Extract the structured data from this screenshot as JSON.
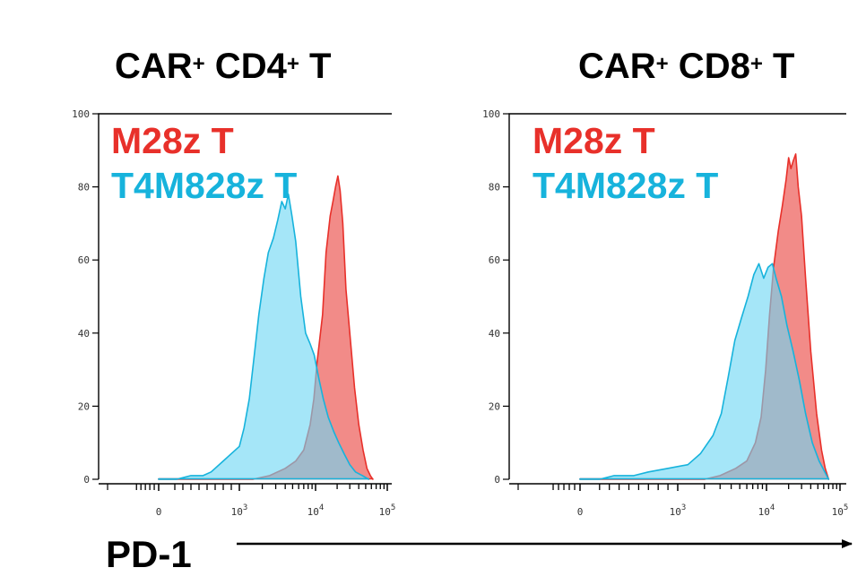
{
  "x_axis_label": "PD-1",
  "chart_data": [
    {
      "type": "area",
      "title": {
        "main": "CAR",
        "sup1": "+",
        "mid": " CD4",
        "sup2": "+",
        "end": " T"
      },
      "ylim": [
        0,
        100
      ],
      "ytick_labels": [
        "0",
        "20",
        "40",
        "60",
        "80",
        "100"
      ],
      "x_scale": "logicle",
      "xtick_labels": [
        {
          "base": "0",
          "exp": ""
        },
        {
          "base": "10",
          "exp": "3"
        },
        {
          "base": "10",
          "exp": "4"
        },
        {
          "base": "10",
          "exp": "5"
        }
      ],
      "series": [
        {
          "name": "M28z T",
          "color": "#e8302a",
          "fill": "#f28b88",
          "points": [
            [
              0,
              0
            ],
            [
              1500,
              0
            ],
            [
              2500,
              1
            ],
            [
              4000,
              3
            ],
            [
              5500,
              5
            ],
            [
              7000,
              8
            ],
            [
              8500,
              15
            ],
            [
              9500,
              22
            ],
            [
              10500,
              32
            ],
            [
              12500,
              45
            ],
            [
              14000,
              62
            ],
            [
              16000,
              72
            ],
            [
              17500,
              76
            ],
            [
              19000,
              80
            ],
            [
              20500,
              83
            ],
            [
              22000,
              79
            ],
            [
              24000,
              70
            ],
            [
              26500,
              52
            ],
            [
              30000,
              40
            ],
            [
              35000,
              25
            ],
            [
              40000,
              15
            ],
            [
              46000,
              8
            ],
            [
              52000,
              3
            ],
            [
              58000,
              1
            ],
            [
              63000,
              0
            ]
          ]
        },
        {
          "name": "T4M828z T",
          "color": "#17b3dc",
          "fill": "#6dd6f3",
          "points": [
            [
              0,
              0
            ],
            [
              130,
              0
            ],
            [
              220,
              0
            ],
            [
              400,
              1
            ],
            [
              550,
              1
            ],
            [
              650,
              2
            ],
            [
              800,
              5
            ],
            [
              1000,
              9
            ],
            [
              1150,
              14
            ],
            [
              1350,
              22
            ],
            [
              1550,
              33
            ],
            [
              1800,
              45
            ],
            [
              2100,
              55
            ],
            [
              2400,
              62
            ],
            [
              2800,
              66
            ],
            [
              3200,
              71
            ],
            [
              3600,
              76
            ],
            [
              4000,
              74
            ],
            [
              4400,
              78
            ],
            [
              4900,
              72
            ],
            [
              5500,
              65
            ],
            [
              6400,
              50
            ],
            [
              7400,
              40
            ],
            [
              8500,
              37
            ],
            [
              9600,
              34
            ],
            [
              11000,
              28
            ],
            [
              12800,
              22
            ],
            [
              15000,
              17
            ],
            [
              18000,
              13
            ],
            [
              21000,
              10
            ],
            [
              25000,
              7
            ],
            [
              30000,
              4
            ],
            [
              36000,
              2
            ],
            [
              45000,
              1
            ],
            [
              55000,
              0
            ]
          ]
        }
      ]
    },
    {
      "type": "area",
      "title": {
        "main": "CAR",
        "sup1": "+",
        "mid": " CD8",
        "sup2": "+",
        "end": " T"
      },
      "ylim": [
        0,
        100
      ],
      "ytick_labels": [
        "0",
        "20",
        "40",
        "60",
        "80",
        "100"
      ],
      "x_scale": "logicle",
      "xtick_labels": [
        {
          "base": "0",
          "exp": ""
        },
        {
          "base": "10",
          "exp": "3"
        },
        {
          "base": "10",
          "exp": "4"
        },
        {
          "base": "10",
          "exp": "5"
        }
      ],
      "series": [
        {
          "name": "M28z T",
          "color": "#e8302a",
          "fill": "#f28b88",
          "points": [
            [
              0,
              0
            ],
            [
              2000,
              0
            ],
            [
              3000,
              1
            ],
            [
              4500,
              3
            ],
            [
              6000,
              5
            ],
            [
              7500,
              10
            ],
            [
              8700,
              17
            ],
            [
              9800,
              30
            ],
            [
              11000,
              45
            ],
            [
              12500,
              58
            ],
            [
              14500,
              68
            ],
            [
              16500,
              75
            ],
            [
              18500,
              82
            ],
            [
              20000,
              88
            ],
            [
              21500,
              85
            ],
            [
              23000,
              87
            ],
            [
              25000,
              89
            ],
            [
              27000,
              80
            ],
            [
              30000,
              72
            ],
            [
              34000,
              55
            ],
            [
              40000,
              35
            ],
            [
              48000,
              18
            ],
            [
              56000,
              8
            ],
            [
              63000,
              3
            ],
            [
              70000,
              0
            ]
          ]
        },
        {
          "name": "T4M828z T",
          "color": "#17b3dc",
          "fill": "#6dd6f3",
          "points": [
            [
              0,
              0
            ],
            [
              200,
              0
            ],
            [
              350,
              1
            ],
            [
              550,
              1
            ],
            [
              700,
              2
            ],
            [
              900,
              3
            ],
            [
              1300,
              4
            ],
            [
              1800,
              7
            ],
            [
              2500,
              12
            ],
            [
              3100,
              18
            ],
            [
              3700,
              28
            ],
            [
              4400,
              38
            ],
            [
              5200,
              44
            ],
            [
              6200,
              50
            ],
            [
              7200,
              56
            ],
            [
              8200,
              59
            ],
            [
              9300,
              55
            ],
            [
              10500,
              58
            ],
            [
              12000,
              59
            ],
            [
              13500,
              55
            ],
            [
              16000,
              50
            ],
            [
              19000,
              42
            ],
            [
              23000,
              35
            ],
            [
              28000,
              27
            ],
            [
              34000,
              18
            ],
            [
              42000,
              10
            ],
            [
              52000,
              5
            ],
            [
              62000,
              2
            ],
            [
              70000,
              0
            ]
          ]
        }
      ]
    }
  ]
}
